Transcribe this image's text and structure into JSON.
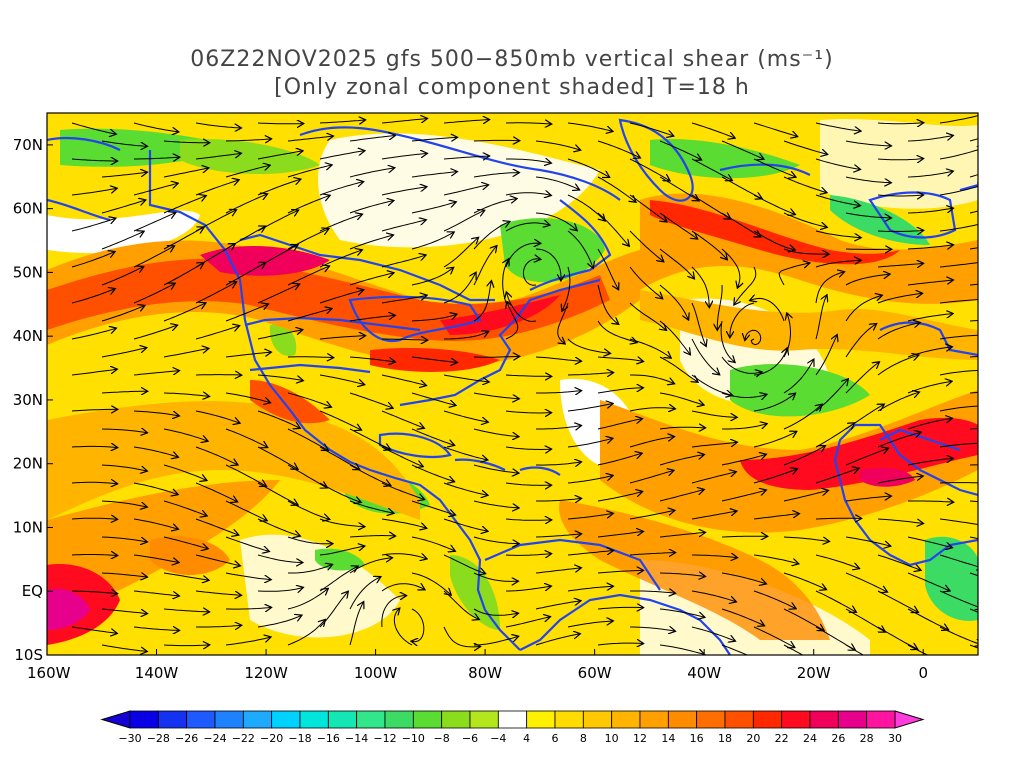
{
  "title": {
    "line1": "06Z22NOV2025 gfs 500−850mb vertical shear (ms⁻¹)",
    "line2": "[Only zonal component shaded] T=18 h"
  },
  "axes": {
    "lat_labels": [
      "70N",
      "60N",
      "50N",
      "40N",
      "30N",
      "20N",
      "10N",
      "EQ",
      "10S"
    ],
    "lon_labels": [
      "160W",
      "140W",
      "120W",
      "100W",
      "80W",
      "60W",
      "40W",
      "20W",
      "0"
    ],
    "lon_range": [
      -160,
      10
    ],
    "lat_range": [
      -10,
      75
    ]
  },
  "colorbar": {
    "labels": [
      "−30",
      "−28",
      "−26",
      "−24",
      "−22",
      "−20",
      "−18",
      "−16",
      "−14",
      "−12",
      "−10",
      "−8",
      "−6",
      "−4",
      "4",
      "6",
      "8",
      "10",
      "12",
      "14",
      "16",
      "18",
      "20",
      "22",
      "24",
      "26",
      "28",
      "30"
    ],
    "colors": [
      "#0a00e6",
      "#1432f0",
      "#1e5aff",
      "#1e82ff",
      "#1eaaff",
      "#00d2ff",
      "#00e6dc",
      "#14e6b4",
      "#32e68c",
      "#3cdc64",
      "#5adc32",
      "#8cdc1e",
      "#b4e61e",
      "#ffffff",
      "#fff000",
      "#ffdc00",
      "#ffc800",
      "#ffb400",
      "#ffa000",
      "#ff8c00",
      "#ff6e00",
      "#ff5000",
      "#ff2800",
      "#ff0a1e",
      "#f0005a",
      "#e6008c",
      "#ff14a0"
    ],
    "under_color": "#1400d2",
    "over_color": "#ff3cdc"
  },
  "colors": {
    "frame": "#000000",
    "coast": "#2244ee",
    "streamline": "#000000"
  }
}
